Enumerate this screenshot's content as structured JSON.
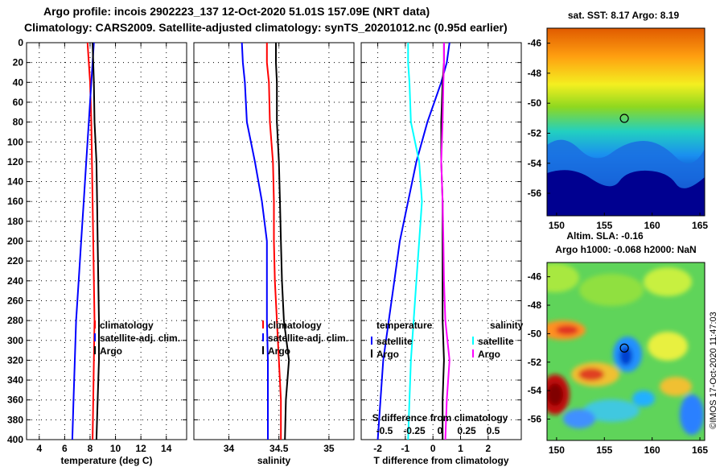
{
  "titles": {
    "line1": "Argo profile: incois 2902223_137 12-Oct-2020 51.01S 157.09E (NRT data)",
    "line2": "Climatology: CARS2009. Satellite-adjusted climatology: synTS_20201012.nc (0.95d earlier)"
  },
  "chart_data": [
    {
      "id": "temperature",
      "type": "line",
      "xlabel": "temperature (deg C)",
      "ylabel": "",
      "xlim": [
        3,
        15.6
      ],
      "ylim": [
        400,
        0
      ],
      "xticks": [
        4,
        6,
        8,
        10,
        12,
        14
      ],
      "xtick_labels": [
        "4",
        "6",
        "8",
        "10",
        "12",
        "14"
      ],
      "yticks": [
        0,
        20,
        40,
        60,
        80,
        100,
        120,
        140,
        160,
        180,
        200,
        220,
        240,
        260,
        280,
        300,
        320,
        340,
        360,
        380,
        400
      ],
      "ytick_labels": [
        "0",
        "20",
        "40",
        "60",
        "80",
        "100",
        "120",
        "140",
        "160",
        "180",
        "200",
        "220",
        "240",
        "260",
        "280",
        "300",
        "320",
        "340",
        "360",
        "380",
        "400"
      ],
      "grid": true,
      "legend": [
        "climatology",
        "satellite-adj. clim.",
        "Argo"
      ],
      "legend_location": "right",
      "series": [
        {
          "name": "climatology",
          "color": "#ff0000",
          "x": [
            7.8,
            7.9,
            8.0,
            8.1,
            8.15,
            8.2,
            8.25,
            8.3,
            8.35,
            8.3,
            8.25,
            8.2
          ],
          "y": [
            0,
            20,
            40,
            80,
            120,
            160,
            200,
            240,
            280,
            320,
            360,
            400
          ]
        },
        {
          "name": "satellite-adj. clim.",
          "color": "#0000ff",
          "x": [
            8.3,
            8.2,
            8.1,
            7.9,
            7.7,
            7.5,
            7.3,
            7.1,
            6.9,
            6.8,
            6.7,
            6.6
          ],
          "y": [
            0,
            20,
            40,
            80,
            120,
            160,
            200,
            240,
            280,
            320,
            360,
            400
          ]
        },
        {
          "name": "Argo",
          "color": "#000000",
          "x": [
            8.2,
            8.25,
            8.3,
            8.35,
            8.5,
            8.55,
            8.6,
            8.65,
            8.7,
            8.7,
            8.6,
            8.5
          ],
          "y": [
            0,
            20,
            40,
            80,
            120,
            160,
            200,
            240,
            280,
            320,
            360,
            400
          ]
        }
      ]
    },
    {
      "id": "salinity",
      "type": "line",
      "xlabel": "salinity",
      "ylabel": "",
      "xlim": [
        33.65,
        35.25
      ],
      "ylim": [
        400,
        0
      ],
      "xticks": [
        34,
        34.5,
        35
      ],
      "xtick_labels": [
        "34",
        "34.5",
        "35"
      ],
      "grid": true,
      "legend": [
        "climatology",
        "satellite-adj. clim.",
        "Argo"
      ],
      "legend_location": "right",
      "series": [
        {
          "name": "climatology",
          "color": "#ff0000",
          "x": [
            34.38,
            34.38,
            34.4,
            34.41,
            34.44,
            34.45,
            34.45,
            34.46,
            34.48,
            34.5,
            34.52,
            34.52
          ],
          "y": [
            0,
            20,
            40,
            80,
            120,
            160,
            200,
            240,
            280,
            320,
            360,
            400
          ]
        },
        {
          "name": "satellite-adj. clim.",
          "color": "#0000ff",
          "x": [
            34.13,
            34.14,
            34.16,
            34.18,
            34.26,
            34.33,
            34.38,
            34.38,
            34.38,
            34.39,
            34.39,
            34.39
          ],
          "y": [
            0,
            20,
            40,
            80,
            120,
            160,
            200,
            240,
            280,
            320,
            360,
            400
          ]
        },
        {
          "name": "Argo",
          "color": "#000000",
          "x": [
            34.47,
            34.47,
            34.48,
            34.48,
            34.5,
            34.51,
            34.52,
            34.53,
            34.55,
            34.6,
            34.57,
            34.56
          ],
          "y": [
            0,
            20,
            40,
            80,
            120,
            160,
            200,
            240,
            280,
            320,
            360,
            400
          ]
        }
      ]
    },
    {
      "id": "difference",
      "type": "line",
      "xlabel": "T difference from climatology",
      "x2label": "S difference from climatology",
      "xlim": [
        -2.6,
        3.2
      ],
      "ylim": [
        400,
        0
      ],
      "xticks": [
        -2,
        -1,
        0,
        1,
        2
      ],
      "xtick_labels": [
        "-2",
        "-1",
        "0",
        "1",
        "2"
      ],
      "x2ticks": [
        "-0.5",
        "-0.25",
        "0",
        "0.25",
        "0.5"
      ],
      "grid": true,
      "legend_temperature": {
        "title": "temperature",
        "items": [
          "satellite",
          "Argo"
        ]
      },
      "legend_salinity": {
        "title": "salinity",
        "items": [
          "satellite",
          "Argo"
        ]
      },
      "series": [
        {
          "name": "temperature satellite",
          "color": "#0000ff",
          "x": [
            0.6,
            0.5,
            0.3,
            -0.2,
            -0.6,
            -0.9,
            -1.2,
            -1.4,
            -1.6,
            -1.8,
            -1.9,
            -2.0
          ],
          "y": [
            0,
            20,
            40,
            80,
            120,
            160,
            200,
            240,
            280,
            320,
            360,
            400
          ]
        },
        {
          "name": "temperature Argo",
          "color": "#000000",
          "x": [
            0.4,
            0.4,
            0.35,
            0.3,
            0.3,
            0.35,
            0.35,
            0.35,
            0.35,
            0.4,
            0.35,
            0.35
          ],
          "y": [
            0,
            20,
            40,
            80,
            120,
            160,
            200,
            240,
            280,
            320,
            360,
            400
          ]
        },
        {
          "name": "salinity satellite",
          "color": "#00ffff",
          "x": [
            -0.9,
            -0.9,
            -0.85,
            -0.8,
            -0.5,
            -0.4,
            -0.5,
            -0.6,
            -0.7,
            -0.8,
            -0.85,
            -0.9
          ],
          "y": [
            0,
            20,
            40,
            80,
            120,
            160,
            200,
            240,
            280,
            320,
            360,
            400
          ]
        },
        {
          "name": "salinity Argo",
          "color": "#ff00ff",
          "x": [
            0.4,
            0.4,
            0.38,
            0.35,
            0.3,
            0.35,
            0.38,
            0.4,
            0.45,
            0.6,
            0.5,
            0.45
          ],
          "y": [
            0,
            20,
            40,
            80,
            120,
            160,
            200,
            240,
            280,
            320,
            360,
            400
          ]
        }
      ]
    },
    {
      "id": "sst-map",
      "type": "heatmap",
      "title": "sat. SST: 8.17  Argo: 8.19",
      "xlim": [
        149,
        165.5
      ],
      "ylim": [
        -57.5,
        -45
      ],
      "xticks": [
        150,
        155,
        160,
        165
      ],
      "xtick_labels": [
        "150",
        "155",
        "160",
        "165"
      ],
      "yticks": [
        -46,
        -48,
        -50,
        -52,
        -54,
        -56
      ],
      "ytick_labels": [
        "-46",
        "-48",
        "-50",
        "-52",
        "-54",
        "-56"
      ],
      "float_position": {
        "lon": 157.09,
        "lat": -51.01
      }
    },
    {
      "id": "sla-map",
      "type": "heatmap",
      "title": "Altim. SLA: -0.16",
      "subtitle": "Argo h1000: -0.068  h2000: NaN",
      "xlim": [
        149,
        165.5
      ],
      "ylim": [
        -57.5,
        -45
      ],
      "xticks": [
        150,
        155,
        160,
        165
      ],
      "xtick_labels": [
        "150",
        "155",
        "160",
        "165"
      ],
      "yticks": [
        -46,
        -48,
        -50,
        -52,
        -54,
        -56
      ],
      "ytick_labels": [
        "-46",
        "-48",
        "-50",
        "-52",
        "-54",
        "-56"
      ],
      "float_position": {
        "lon": 157.09,
        "lat": -51.01
      }
    }
  ],
  "credit": "©IMOS 17-Oct-2020 11:47:03"
}
